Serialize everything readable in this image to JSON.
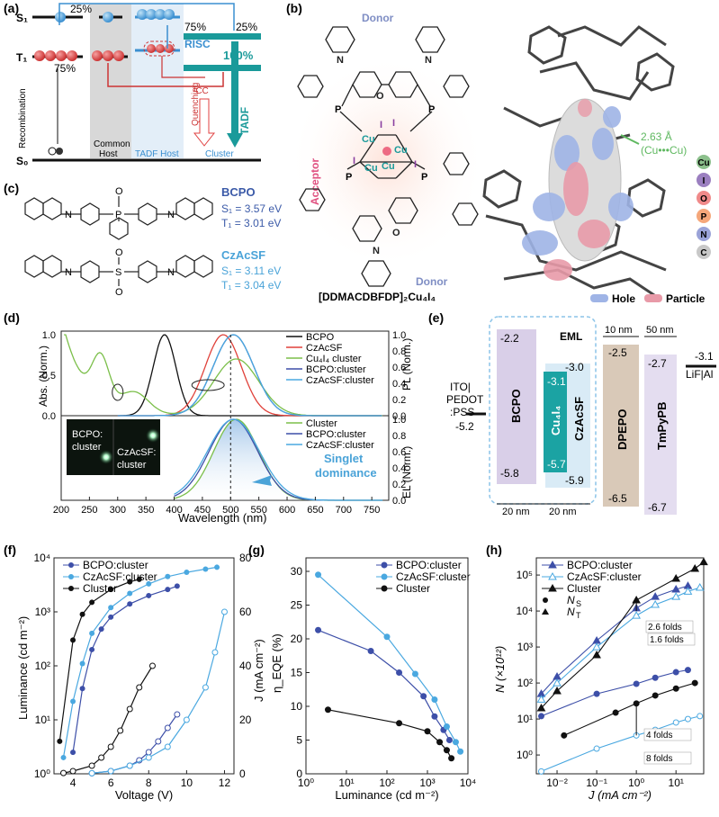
{
  "panels": {
    "a": "(a)",
    "b": "(b)",
    "c": "(c)",
    "d": "(d)",
    "e": "(e)",
    "f": "(f)",
    "g": "(g)",
    "h": "(h)"
  },
  "a": {
    "s1": "S₁",
    "t1": "T₁",
    "s0": "S₀",
    "p25": "25%",
    "p75": "75%",
    "p75b": "75%",
    "p25b": "25%",
    "p100": "100%",
    "risc": "RISC",
    "cc": "³CC",
    "tadf": "TADF",
    "quenching": "Quenching",
    "recombination": "Recombination",
    "common_host": "Common Host",
    "common_host_l1": "Common",
    "common_host_l2": "Host",
    "tadf_host": "TADF Host",
    "cluster": "Cluster"
  },
  "b": {
    "donor_top": "Donor",
    "donor_bottom": "Donor",
    "acceptor": "Acceptor",
    "compound": "[DDMACDBFDP]₂Cu₄I₄",
    "distance": "2.63 Å",
    "distance_note": "(Cu•••Cu)",
    "hole": "Hole",
    "particle": "Particle",
    "elements": [
      "Cu",
      "I",
      "O",
      "P",
      "N",
      "C"
    ],
    "element_colors": [
      "#8cc08c",
      "#9b7fc0",
      "#f08a8a",
      "#f5a77a",
      "#9aa3d8",
      "#c8c8c8"
    ],
    "atom_labels": {
      "P": "P",
      "Cu": "Cu",
      "I": "I",
      "O": "O",
      "N": "N"
    }
  },
  "c": {
    "m1": {
      "name": "BCPO",
      "s1": "S₁ = 3.57 eV",
      "t1": "T₁ = 3.01 eV",
      "color": "#3b5aa8"
    },
    "m2": {
      "name": "CzAcSF",
      "s1": "S₁ = 3.11 eV",
      "t1": "T₁ = 3.04 eV",
      "color": "#4aa3d8"
    },
    "atoms": {
      "O": "O",
      "P": "P",
      "S": "S",
      "N": "N"
    }
  },
  "d": {
    "legend_top": [
      "BCPO",
      "CzAcSF",
      "Cu₄I₄ cluster",
      "BCPO:cluster",
      "CzAcSF:cluster"
    ],
    "legend_bottom": [
      "Cluster",
      "BCPO:cluster",
      "CzAcSF:cluster"
    ],
    "ylabel_left": "Abs. (Norm.)",
    "ylabel_right_top": "PL (Norm.)",
    "ylabel_right_bottom": "EL (Norm.)",
    "xlabel": "Wavelength (nm)",
    "xticks": [
      "200",
      "250",
      "300",
      "350",
      "400",
      "450",
      "500",
      "550",
      "600",
      "650",
      "700",
      "750"
    ],
    "yticks_left": [
      "0.0",
      "0.5",
      "1.0"
    ],
    "yticks_right": [
      "0.0",
      "0.2",
      "0.4",
      "0.6",
      "0.8",
      "1.0"
    ],
    "photo_left": "BCPO: cluster",
    "photo_right": "CzAcSF: cluster",
    "photo_left_l1": "BCPO:",
    "photo_left_l2": "cluster",
    "photo_right_l1": "CzAcSF:",
    "photo_right_l2": "cluster",
    "singlet": "Singlet dominance",
    "singlet_l1": "Singlet",
    "singlet_l2": "dominance"
  },
  "e": {
    "eml": "EML",
    "ito": "ITO| PEDOT :PSS",
    "ito_l1": "ITO|",
    "ito_l2": "PEDOT",
    "ito_l3": ":PSS",
    "ito_val": "-5.2",
    "bcpo": "BCPO",
    "bcpo_h": "-2.2",
    "bcpo_l": "-5.8",
    "cu": "Cu₄I₄",
    "cu_h": "-3.1",
    "cu_l": "-5.7",
    "czacsf": "CzAcSF",
    "cz_h": "-3.0",
    "cz_l": "-5.9",
    "dpepo": "DPEPO",
    "dpepo_h": "-2.5",
    "dpepo_l": "-6.5",
    "tmpypb": "TmPyPB",
    "tm_h": "-2.7",
    "tm_l": "-6.7",
    "lif": "LiF|Al",
    "lif_val": "-3.1",
    "d10": "10 nm",
    "d50": "50 nm",
    "d20a": "20 nm",
    "d20b": "20 nm"
  },
  "chart_data": [
    {
      "type": "line",
      "panel": "f",
      "xlabel": "Voltage (V)",
      "ylabel": "Luminance (cd m⁻²)",
      "ylabel_right": "J (mA cm⁻²)",
      "x_ticks": [
        "4",
        "6",
        "8",
        "10",
        "12"
      ],
      "y_ticks": [
        "10⁰",
        "10¹",
        "10²",
        "10³",
        "10⁴"
      ],
      "y_right_ticks": [
        "0",
        "20",
        "40",
        "60",
        "80"
      ],
      "xlim": [
        3,
        12.5
      ],
      "ylim_log": [
        1,
        10000
      ],
      "y2lim": [
        0,
        80
      ],
      "series": [
        {
          "name": "BCPO:cluster",
          "color": "#3d4fa8",
          "x": [
            4.0,
            4.5,
            5.0,
            5.5,
            6.0,
            7.0,
            8.0,
            9.0,
            9.5
          ],
          "y": [
            2.5,
            38,
            200,
            480,
            800,
            1400,
            2000,
            2600,
            3000
          ],
          "jx": [
            5,
            6,
            7,
            7.5,
            8,
            8.5,
            9,
            9.5
          ],
          "jy": [
            0.2,
            1,
            3,
            5,
            8,
            12,
            17,
            22
          ]
        },
        {
          "name": "CzAcSF:cluster",
          "color": "#4aa8e0",
          "x": [
            3.5,
            4.0,
            4.5,
            5.0,
            6.0,
            7.0,
            8.0,
            9.0,
            10.0,
            11.0,
            11.6
          ],
          "y": [
            2,
            22,
            110,
            400,
            1200,
            2200,
            3300,
            4500,
            5400,
            6200,
            6700
          ],
          "jx": [
            5,
            6,
            7,
            8,
            9,
            10,
            11,
            11.5,
            12
          ],
          "jy": [
            0.2,
            1,
            3,
            6,
            10,
            20,
            32,
            45,
            60
          ]
        },
        {
          "name": "Cluster",
          "color": "#111111",
          "x": [
            3.3,
            4.0,
            4.5,
            5.0,
            6.0,
            7.0,
            7.5
          ],
          "y": [
            4,
            300,
            900,
            1500,
            2600,
            3600,
            4000
          ],
          "jx": [
            3.5,
            4,
            5,
            5.5,
            6,
            6.5,
            7,
            7.5,
            8.2
          ],
          "jy": [
            0.3,
            1,
            3,
            6,
            10,
            16,
            24,
            32,
            40
          ]
        }
      ]
    },
    {
      "type": "line",
      "panel": "g",
      "xlabel": "Luminance (cd m⁻²)",
      "ylabel": "η_EQE (%)",
      "x_ticks": [
        "10⁰",
        "10¹",
        "10²",
        "10³",
        "10⁴"
      ],
      "y_ticks": [
        "0",
        "5",
        "10",
        "15",
        "20",
        "25",
        "30"
      ],
      "xlim_log": [
        1,
        10000
      ],
      "ylim": [
        0,
        32
      ],
      "series": [
        {
          "name": "BCPO:cluster",
          "color": "#3d4fa8",
          "x": [
            2,
            40,
            200,
            800,
            1500,
            2500,
            3500
          ],
          "y": [
            21.3,
            18.2,
            15.0,
            11.5,
            8.5,
            6.5,
            5.0
          ]
        },
        {
          "name": "CzAcSF:cluster",
          "color": "#4aa8e0",
          "x": [
            2,
            100,
            500,
            1500,
            3000,
            5000,
            6500
          ],
          "y": [
            29.5,
            20.3,
            14.8,
            11.0,
            7.0,
            4.7,
            3.3
          ]
        },
        {
          "name": "Cluster",
          "color": "#111111",
          "x": [
            3.5,
            200,
            1000,
            2000,
            3000,
            3900
          ],
          "y": [
            9.5,
            7.5,
            6.3,
            4.7,
            3.5,
            2.3
          ]
        }
      ]
    },
    {
      "type": "scatter",
      "panel": "h",
      "xlabel": "J (mA cm⁻²)",
      "ylabel": "N (×10¹²)",
      "x_ticks": [
        "10⁻²",
        "10⁻¹",
        "10⁰",
        "10¹"
      ],
      "y_ticks": [
        "10⁰",
        "10¹",
        "10²",
        "10³",
        "10⁴",
        "10⁵"
      ],
      "xlim_log": [
        0.003,
        50
      ],
      "ylim_log": [
        0.3,
        300000
      ],
      "legend": [
        "BCPO:cluster",
        "CzAcSF:cluster",
        "Cluster",
        "N_S",
        "N_T"
      ],
      "legend_ns": "N",
      "legend_ns_sub": "S",
      "legend_nt": "N",
      "legend_nt_sub": "T",
      "annotations": [
        "2.6 folds",
        "1.6 folds",
        "4 folds",
        "8 folds"
      ],
      "series": [
        {
          "name": "BCPO:cluster N_T",
          "color": "#3d4fa8",
          "marker": "triangle-filled",
          "x": [
            0.004,
            0.01,
            0.1,
            1,
            3,
            10,
            20
          ],
          "y": [
            50,
            150,
            1500,
            12000,
            25000,
            40000,
            50000
          ]
        },
        {
          "name": "CzAcSF:cluster N_T",
          "color": "#4aa8e0",
          "marker": "triangle-open",
          "x": [
            0.004,
            0.01,
            0.1,
            1,
            3,
            10,
            20,
            40
          ],
          "y": [
            35,
            100,
            1000,
            7500,
            15000,
            25000,
            35000,
            45000
          ]
        },
        {
          "name": "Cluster N_T",
          "color": "#111111",
          "marker": "triangle-filled",
          "x": [
            0.004,
            0.01,
            0.1,
            1,
            10,
            30,
            50
          ],
          "y": [
            20,
            60,
            600,
            20000,
            80000,
            150000,
            230000
          ]
        },
        {
          "name": "BCPO:cluster N_S",
          "color": "#3d4fa8",
          "marker": "circle-filled",
          "x": [
            0.004,
            0.1,
            1,
            3,
            10,
            20
          ],
          "y": [
            12,
            50,
            95,
            140,
            200,
            230
          ]
        },
        {
          "name": "Cluster N_S",
          "color": "#111111",
          "marker": "circle-filled",
          "x": [
            0.015,
            0.3,
            1,
            3,
            10,
            30
          ],
          "y": [
            3.5,
            15,
            27,
            45,
            70,
            100
          ]
        },
        {
          "name": "CzAcSF:cluster N_S",
          "color": "#4aa8e0",
          "marker": "circle-open",
          "x": [
            0.004,
            0.1,
            1,
            3,
            10,
            20,
            40
          ],
          "y": [
            0.35,
            1.5,
            3.5,
            5,
            8,
            10,
            12
          ]
        }
      ]
    },
    {
      "type": "line",
      "panel": "d-top",
      "xlabel": "Wavelength (nm)",
      "ylabel": "Abs. (Norm.)",
      "ylabel_right": "PL (Norm.)",
      "xlim": [
        200,
        780
      ],
      "ylim": [
        0,
        1.05
      ],
      "series": [
        {
          "name": "BCPO",
          "color": "#111111",
          "peak": 383
        },
        {
          "name": "CzAcSF",
          "color": "#e0413a",
          "peak": 487
        },
        {
          "name": "Cu₄I₄ cluster",
          "color": "#7bbf4a",
          "peak": 510
        },
        {
          "name": "BCPO:cluster",
          "color": "#3d4fa8",
          "peak": 505
        },
        {
          "name": "CzAcSF:cluster",
          "color": "#4aa8e0",
          "peak": 505
        }
      ]
    },
    {
      "type": "line",
      "panel": "d-bottom",
      "xlabel": "Wavelength (nm)",
      "ylabel": "EL (Norm.)",
      "xlim": [
        200,
        780
      ],
      "ylim": [
        0,
        1.05
      ],
      "series": [
        {
          "name": "Cluster",
          "color": "#7bbf4a",
          "peak": 510
        },
        {
          "name": "BCPO:cluster",
          "color": "#3d4fa8",
          "peak": 505
        },
        {
          "name": "CzAcSF:cluster",
          "color": "#4aa8e0",
          "peak": 505
        }
      ]
    }
  ]
}
